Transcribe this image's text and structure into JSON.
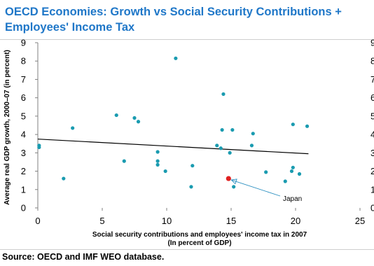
{
  "title": "OECD Economies: Growth vs Social Security Contributions + Employees' Income Tax",
  "source": "Source: OECD and IMF WEO database.",
  "chart_data": {
    "type": "scatter",
    "title": "OECD Economies: Growth vs Social Security Contributions + Employees' Income Tax",
    "xlabel_line1": "Social security contributions  and employees'  income tax in 2007",
    "xlabel_line2": "(In percent of GDP)",
    "ylabel": "Average real GDP growth, 2000–07 (in percent)",
    "xlim": [
      0,
      25
    ],
    "ylim": [
      0,
      9
    ],
    "x_ticks": [
      0,
      5,
      10,
      15,
      20,
      25
    ],
    "y_ticks": [
      0,
      1,
      2,
      3,
      4,
      5,
      6,
      7,
      8,
      9
    ],
    "grid": false,
    "colors": {
      "points": "#1a9bb0",
      "highlight": "#e02020",
      "trendline": "#000000",
      "annotation": "#2a8fc0"
    },
    "points": [
      {
        "x": 0.1,
        "y": 3.4
      },
      {
        "x": 0.1,
        "y": 3.3
      },
      {
        "x": 2.0,
        "y": 1.6
      },
      {
        "x": 2.7,
        "y": 4.35
      },
      {
        "x": 6.1,
        "y": 5.05
      },
      {
        "x": 6.7,
        "y": 2.55
      },
      {
        "x": 7.5,
        "y": 4.9
      },
      {
        "x": 7.8,
        "y": 4.7
      },
      {
        "x": 9.3,
        "y": 3.05
      },
      {
        "x": 9.3,
        "y": 2.55
      },
      {
        "x": 9.3,
        "y": 2.35
      },
      {
        "x": 9.9,
        "y": 2.0
      },
      {
        "x": 10.7,
        "y": 8.15
      },
      {
        "x": 12.0,
        "y": 2.3
      },
      {
        "x": 11.9,
        "y": 1.15
      },
      {
        "x": 13.9,
        "y": 3.4
      },
      {
        "x": 14.2,
        "y": 3.25
      },
      {
        "x": 14.3,
        "y": 4.25
      },
      {
        "x": 14.4,
        "y": 6.2
      },
      {
        "x": 14.9,
        "y": 3.0
      },
      {
        "x": 15.1,
        "y": 4.25
      },
      {
        "x": 15.2,
        "y": 1.15
      },
      {
        "x": 16.6,
        "y": 3.4
      },
      {
        "x": 16.7,
        "y": 4.05
      },
      {
        "x": 17.7,
        "y": 1.95
      },
      {
        "x": 19.2,
        "y": 1.45
      },
      {
        "x": 19.7,
        "y": 2.0
      },
      {
        "x": 19.8,
        "y": 2.2
      },
      {
        "x": 19.8,
        "y": 4.55
      },
      {
        "x": 20.3,
        "y": 1.85
      },
      {
        "x": 20.9,
        "y": 4.45
      }
    ],
    "highlight": {
      "x": 14.8,
      "y": 1.6,
      "label": "Japan"
    },
    "trendline": {
      "x": [
        0,
        21
      ],
      "y": [
        3.75,
        2.95
      ]
    }
  }
}
